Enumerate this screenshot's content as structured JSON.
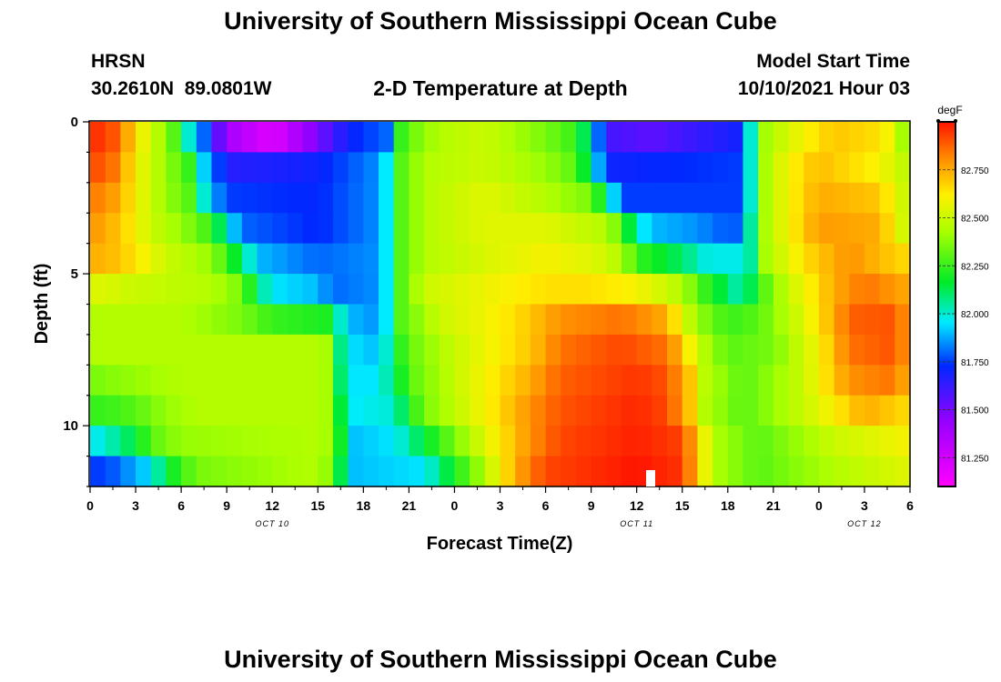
{
  "page": {
    "top_title": "University of Southern Mississippi Ocean Cube",
    "bottom_title": "University of Southern Mississippi Ocean Cube",
    "station": "HRSN",
    "coords": "30.2610N  89.0801W",
    "plot_title": "2-D Temperature at Depth",
    "model_label": "Model Start Time",
    "model_time": "10/10/2021 Hour 03"
  },
  "chart_data": {
    "type": "heatmap",
    "title": "2-D Temperature at Depth",
    "xlabel": "Forecast Time(Z)",
    "ylabel": "Depth (ft)",
    "x_ticks": [
      "0",
      "3",
      "6",
      "9",
      "12",
      "15",
      "18",
      "21",
      "0",
      "3",
      "6",
      "9",
      "12",
      "15",
      "18",
      "21",
      "0",
      "3",
      "6"
    ],
    "x_range_hours": [
      0,
      54
    ],
    "date_labels": [
      {
        "text": "OCT 10",
        "hour": 12
      },
      {
        "text": "OCT 11",
        "hour": 36
      },
      {
        "text": "OCT 12",
        "hour": 51
      }
    ],
    "y_ticks": [
      "0",
      "5",
      "10"
    ],
    "y_range_ft": [
      0,
      12
    ],
    "rows_depth_ft": [
      0.5,
      1.5,
      2.5,
      3.5,
      4.5,
      5.5,
      6.5,
      7.5,
      8.5,
      9.5,
      10.5,
      11.5
    ],
    "colorbar": {
      "unit": "degF",
      "min": 81.1,
      "max": 83.0,
      "ticks": [
        "82.750",
        "82.500",
        "82.250",
        "82.000",
        "81.750",
        "81.500",
        "81.250"
      ]
    },
    "rows": [
      [
        [
          0,
          82.95
        ],
        [
          1,
          82.95
        ],
        [
          2,
          82.85
        ],
        [
          3,
          82.65
        ],
        [
          4,
          82.5
        ],
        [
          5,
          82.4
        ],
        [
          6,
          82.2
        ],
        [
          6.5,
          82.0
        ],
        [
          7.5,
          81.8
        ],
        [
          9,
          81.4
        ],
        [
          12,
          81.2
        ],
        [
          15,
          81.5
        ],
        [
          17,
          81.7
        ],
        [
          19.5,
          81.8
        ],
        [
          20,
          82.0
        ],
        [
          20.6,
          82.3
        ],
        [
          23,
          82.45
        ],
        [
          26,
          82.5
        ],
        [
          30,
          82.35
        ],
        [
          32,
          82.25
        ],
        [
          33,
          82.0
        ],
        [
          34,
          81.6
        ],
        [
          37,
          81.55
        ],
        [
          43,
          81.7
        ],
        [
          43.5,
          82.0
        ],
        [
          44.2,
          82.4
        ],
        [
          47,
          82.6
        ],
        [
          49,
          82.7
        ],
        [
          52,
          82.65
        ],
        [
          53,
          82.55
        ],
        [
          54,
          82.3
        ]
      ],
      [
        [
          0,
          82.9
        ],
        [
          1,
          82.9
        ],
        [
          2,
          82.8
        ],
        [
          3,
          82.6
        ],
        [
          4,
          82.5
        ],
        [
          5,
          82.4
        ],
        [
          6.5,
          82.25
        ],
        [
          7,
          82.0
        ],
        [
          8,
          81.85
        ],
        [
          9,
          81.65
        ],
        [
          15,
          81.7
        ],
        [
          19,
          81.85
        ],
        [
          19.7,
          82.0
        ],
        [
          20.5,
          82.3
        ],
        [
          22,
          82.45
        ],
        [
          26,
          82.5
        ],
        [
          30,
          82.4
        ],
        [
          32,
          82.3
        ],
        [
          33,
          82.05
        ],
        [
          34,
          81.7
        ],
        [
          43,
          81.75
        ],
        [
          43.5,
          82.0
        ],
        [
          44.2,
          82.4
        ],
        [
          46,
          82.6
        ],
        [
          48,
          82.72
        ],
        [
          52,
          82.6
        ],
        [
          54,
          82.45
        ]
      ],
      [
        [
          0,
          82.85
        ],
        [
          2,
          82.75
        ],
        [
          3,
          82.6
        ],
        [
          4,
          82.5
        ],
        [
          5,
          82.4
        ],
        [
          6.5,
          82.3
        ],
        [
          7,
          82.1
        ],
        [
          8,
          81.9
        ],
        [
          9,
          81.75
        ],
        [
          15,
          81.72
        ],
        [
          19,
          81.85
        ],
        [
          19.7,
          82.0
        ],
        [
          20.5,
          82.3
        ],
        [
          22,
          82.45
        ],
        [
          26,
          82.55
        ],
        [
          30,
          82.45
        ],
        [
          33,
          82.35
        ],
        [
          34,
          82.1
        ],
        [
          35,
          81.75
        ],
        [
          43,
          81.75
        ],
        [
          43.5,
          82.0
        ],
        [
          44.2,
          82.4
        ],
        [
          46,
          82.6
        ],
        [
          48,
          82.75
        ],
        [
          52,
          82.7
        ],
        [
          54,
          82.45
        ]
      ],
      [
        [
          0,
          82.8
        ],
        [
          2,
          82.7
        ],
        [
          4,
          82.5
        ],
        [
          6,
          82.4
        ],
        [
          8,
          82.25
        ],
        [
          9,
          82.0
        ],
        [
          10,
          81.8
        ],
        [
          15,
          81.72
        ],
        [
          19,
          81.85
        ],
        [
          19.7,
          82.0
        ],
        [
          20.5,
          82.3
        ],
        [
          22,
          82.45
        ],
        [
          26,
          82.55
        ],
        [
          30,
          82.55
        ],
        [
          34,
          82.45
        ],
        [
          35,
          82.3
        ],
        [
          36,
          82.0
        ],
        [
          37,
          81.9
        ],
        [
          40,
          81.85
        ],
        [
          42,
          81.78
        ],
        [
          43,
          81.8
        ],
        [
          43.5,
          82.05
        ],
        [
          44.2,
          82.4
        ],
        [
          46,
          82.6
        ],
        [
          48,
          82.78
        ],
        [
          52,
          82.75
        ],
        [
          54,
          82.45
        ]
      ],
      [
        [
          0,
          82.75
        ],
        [
          2,
          82.7
        ],
        [
          5,
          82.5
        ],
        [
          8,
          82.4
        ],
        [
          10,
          82.1
        ],
        [
          11,
          81.9
        ],
        [
          15,
          81.8
        ],
        [
          19,
          81.85
        ],
        [
          19.7,
          82.0
        ],
        [
          20.5,
          82.3
        ],
        [
          22,
          82.45
        ],
        [
          27,
          82.55
        ],
        [
          30,
          82.6
        ],
        [
          33,
          82.55
        ],
        [
          35,
          82.45
        ],
        [
          36,
          82.25
        ],
        [
          39,
          82.1
        ],
        [
          41,
          81.95
        ],
        [
          42,
          82.0
        ],
        [
          43,
          81.95
        ],
        [
          43.5,
          82.05
        ],
        [
          44.2,
          82.4
        ],
        [
          47,
          82.65
        ],
        [
          50,
          82.8
        ],
        [
          54,
          82.65
        ]
      ],
      [
        [
          0,
          82.55
        ],
        [
          3,
          82.5
        ],
        [
          8,
          82.45
        ],
        [
          10,
          82.35
        ],
        [
          11,
          82.1
        ],
        [
          12,
          81.95
        ],
        [
          15,
          81.9
        ],
        [
          16,
          81.8
        ],
        [
          19,
          81.85
        ],
        [
          19.7,
          82.0
        ],
        [
          20.5,
          82.3
        ],
        [
          22,
          82.5
        ],
        [
          27,
          82.6
        ],
        [
          30,
          82.65
        ],
        [
          33,
          82.65
        ],
        [
          36,
          82.6
        ],
        [
          39,
          82.45
        ],
        [
          40,
          82.3
        ],
        [
          42,
          82.1
        ],
        [
          43,
          82.0
        ],
        [
          44,
          82.25
        ],
        [
          46,
          82.5
        ],
        [
          49,
          82.75
        ],
        [
          51,
          82.85
        ],
        [
          54,
          82.75
        ]
      ],
      [
        [
          0,
          82.45
        ],
        [
          6,
          82.45
        ],
        [
          10,
          82.35
        ],
        [
          12,
          82.25
        ],
        [
          16,
          82.2
        ],
        [
          16.3,
          82.05
        ],
        [
          17,
          81.9
        ],
        [
          19,
          81.85
        ],
        [
          19.7,
          82.0
        ],
        [
          20.5,
          82.3
        ],
        [
          23,
          82.5
        ],
        [
          28,
          82.65
        ],
        [
          31,
          82.8
        ],
        [
          35,
          82.85
        ],
        [
          38,
          82.75
        ],
        [
          39,
          82.55
        ],
        [
          40,
          82.4
        ],
        [
          42,
          82.25
        ],
        [
          44,
          82.3
        ],
        [
          47,
          82.55
        ],
        [
          49,
          82.75
        ],
        [
          50,
          82.88
        ],
        [
          53,
          82.9
        ],
        [
          54,
          82.75
        ]
      ],
      [
        [
          0,
          82.45
        ],
        [
          15,
          82.45
        ],
        [
          16,
          82.4
        ],
        [
          16.4,
          82.1
        ],
        [
          17,
          81.95
        ],
        [
          19,
          81.9
        ],
        [
          20,
          82.1
        ],
        [
          20.7,
          82.3
        ],
        [
          24,
          82.5
        ],
        [
          29,
          82.7
        ],
        [
          31,
          82.85
        ],
        [
          35,
          82.92
        ],
        [
          38,
          82.85
        ],
        [
          39,
          82.7
        ],
        [
          40,
          82.5
        ],
        [
          42,
          82.3
        ],
        [
          45,
          82.35
        ],
        [
          48,
          82.6
        ],
        [
          50,
          82.85
        ],
        [
          53,
          82.9
        ],
        [
          54,
          82.75
        ]
      ],
      [
        [
          0,
          82.35
        ],
        [
          3,
          82.4
        ],
        [
          6,
          82.45
        ],
        [
          15,
          82.45
        ],
        [
          16,
          82.4
        ],
        [
          16.5,
          82.1
        ],
        [
          17,
          81.95
        ],
        [
          19,
          81.95
        ],
        [
          20,
          82.1
        ],
        [
          21,
          82.3
        ],
        [
          25,
          82.55
        ],
        [
          29,
          82.75
        ],
        [
          31,
          82.88
        ],
        [
          36,
          82.95
        ],
        [
          38,
          82.9
        ],
        [
          39.5,
          82.7
        ],
        [
          40,
          82.5
        ],
        [
          43,
          82.3
        ],
        [
          47,
          82.5
        ],
        [
          50,
          82.8
        ],
        [
          53,
          82.85
        ],
        [
          54,
          82.7
        ]
      ],
      [
        [
          0,
          82.25
        ],
        [
          1,
          82.25
        ],
        [
          3,
          82.3
        ],
        [
          5,
          82.4
        ],
        [
          7,
          82.45
        ],
        [
          15,
          82.45
        ],
        [
          16,
          82.4
        ],
        [
          16.6,
          82.1
        ],
        [
          17,
          81.95
        ],
        [
          20,
          82.0
        ],
        [
          21,
          82.2
        ],
        [
          22,
          82.35
        ],
        [
          26,
          82.6
        ],
        [
          29,
          82.8
        ],
        [
          31,
          82.9
        ],
        [
          36,
          82.97
        ],
        [
          38,
          82.92
        ],
        [
          39.5,
          82.7
        ],
        [
          40.5,
          82.45
        ],
        [
          43,
          82.3
        ],
        [
          48,
          82.55
        ],
        [
          51,
          82.75
        ],
        [
          54,
          82.65
        ]
      ],
      [
        [
          0,
          81.95
        ],
        [
          1,
          82.0
        ],
        [
          3,
          82.15
        ],
        [
          4,
          82.3
        ],
        [
          6,
          82.4
        ],
        [
          15,
          82.45
        ],
        [
          16,
          82.4
        ],
        [
          16.7,
          82.1
        ],
        [
          17,
          81.9
        ],
        [
          20,
          81.95
        ],
        [
          22,
          82.15
        ],
        [
          24,
          82.35
        ],
        [
          26,
          82.55
        ],
        [
          29,
          82.8
        ],
        [
          31,
          82.92
        ],
        [
          36,
          82.98
        ],
        [
          39,
          82.93
        ],
        [
          40,
          82.7
        ],
        [
          41,
          82.45
        ],
        [
          44,
          82.3
        ],
        [
          49,
          82.5
        ],
        [
          54,
          82.6
        ]
      ],
      [
        [
          0,
          81.75
        ],
        [
          1,
          81.75
        ],
        [
          4,
          81.95
        ],
        [
          5,
          82.15
        ],
        [
          7,
          82.35
        ],
        [
          15,
          82.45
        ],
        [
          16,
          82.35
        ],
        [
          16.8,
          82.0
        ],
        [
          17,
          81.9
        ],
        [
          22,
          81.95
        ],
        [
          24,
          82.2
        ],
        [
          26,
          82.45
        ],
        [
          28,
          82.75
        ],
        [
          30,
          82.92
        ],
        [
          36,
          83.0
        ],
        [
          39,
          82.95
        ],
        [
          40,
          82.7
        ],
        [
          41,
          82.45
        ],
        [
          44,
          82.3
        ],
        [
          49,
          82.45
        ],
        [
          54,
          82.55
        ]
      ]
    ]
  }
}
